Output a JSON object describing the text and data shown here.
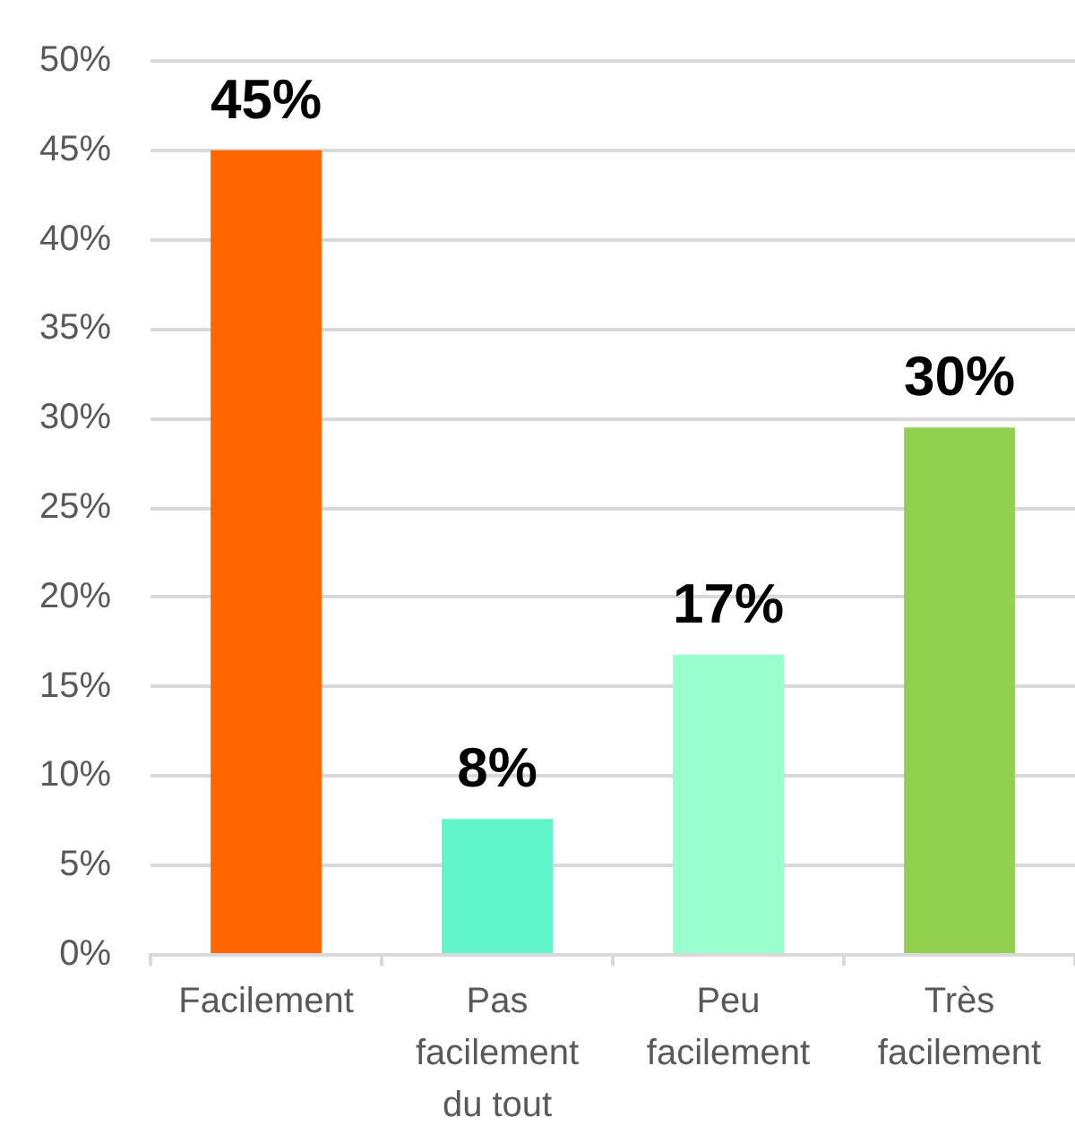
{
  "chart_data": {
    "type": "bar",
    "categories": [
      "Facilement",
      "Pas facilement du tout",
      "Peu facilement",
      "Très facilement"
    ],
    "values": [
      45,
      7.6,
      16.8,
      29.5
    ],
    "colors": [
      "#ff6600",
      "#5ff5c9",
      "#99ffcc",
      "#92d050"
    ],
    "value_labels": [
      "45%",
      "8%",
      "17%",
      "30%"
    ],
    "ylim": [
      0,
      50
    ],
    "yticks": [
      {
        "value": 0,
        "label": "0%"
      },
      {
        "value": 5,
        "label": "5%"
      },
      {
        "value": 10,
        "label": "10%"
      },
      {
        "value": 15,
        "label": "15%"
      },
      {
        "value": 20,
        "label": "20%"
      },
      {
        "value": 25,
        "label": "25%"
      },
      {
        "value": 30,
        "label": "30%"
      },
      {
        "value": 35,
        "label": "35%"
      },
      {
        "value": 40,
        "label": "40%"
      },
      {
        "value": 45,
        "label": "45%"
      },
      {
        "value": 50,
        "label": "50%"
      }
    ],
    "grid": "y"
  }
}
